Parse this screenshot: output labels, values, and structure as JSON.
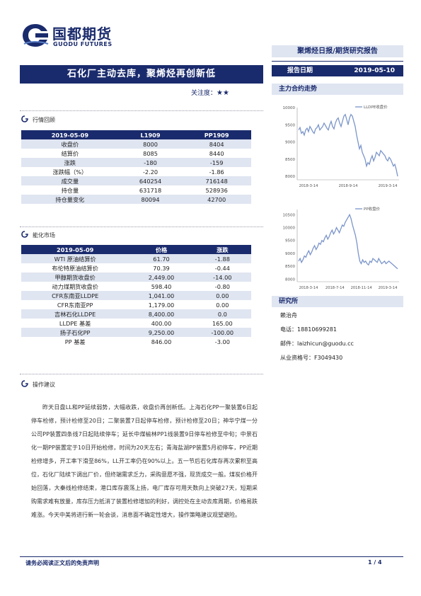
{
  "logo": {
    "name_cn": "国都期货",
    "name_en": "GUODU FUTURES"
  },
  "header": {
    "report_type": "聚烯烃日报/期货研究报告",
    "date_label": "报告日期",
    "date_value": "2019-05-10"
  },
  "title": "石化厂主动去库，聚烯烃再创新低",
  "attention": {
    "label": "关注度：",
    "stars": "★★"
  },
  "sections": {
    "market": "行情回顾",
    "spot": "能化市场",
    "advice": "操作建议"
  },
  "market_table": {
    "headers": [
      "2019-05-09",
      "L1909",
      "PP1909"
    ],
    "rows": [
      [
        "收盘价",
        "8000",
        "8404"
      ],
      [
        "结算价",
        "8085",
        "8440"
      ],
      [
        "涨跌",
        "-180",
        "-159"
      ],
      [
        "涨跌幅（%）",
        "-2.20",
        "-1.86"
      ],
      [
        "成交量",
        "640254",
        "716148"
      ],
      [
        "持仓量",
        "631718",
        "528936"
      ],
      [
        "持仓量变化",
        "80094",
        "42700"
      ]
    ]
  },
  "spot_table": {
    "headers": [
      "2019-05-09",
      "价格",
      "涨跌"
    ],
    "rows": [
      [
        "WTI 原油结算价",
        "61.70",
        "-1.88"
      ],
      [
        "布伦特原油结算价",
        "70.39",
        "-0.44"
      ],
      [
        "甲醇期货收盘价",
        "2,449.00",
        "-14.00"
      ],
      [
        "动力煤期货收盘价",
        "598.40",
        "-0.80"
      ],
      [
        "CFR东南亚LLDPE",
        "1,041.00",
        "0.00"
      ],
      [
        "CFR东南亚PP",
        "1,179.00",
        "0.00"
      ],
      [
        "吉林石化LLDPE",
        "8,400.00",
        "0.0"
      ],
      [
        "LLDPE 基差",
        "400.00",
        "165.00"
      ],
      [
        "扬子石化PP",
        "9,250.00",
        "-100.00"
      ],
      [
        "PP 基差",
        "846.00",
        "-3.00"
      ]
    ]
  },
  "advice_text": "昨天日盘LL和PP延续弱势，大幅收跌，收盘价再创新低。上海石化PP一聚装置6日起停车检修，预计检修至20日；二聚装置7日起停车检修，预计检修至20日；神华宁煤一分公司PP装置四条线7日起陆续停车；延长中煤榆林PP1线装置9日停车检修至中旬；中景石化一期PP装置定于10日开始检修，时间为20天左右；青海盐湖PP装置5月初停车，PP近期检修增多，开工率下滑至86%，LL开工率仍在90%以上。五一节后石化库存再次累积至高位，石化厂陆续下调出厂价，但终端需求乏力，采购意愿不强，现货成交一般。煤炭价格开始回落，大秦线检修结束，港口库存震荡上扬，电厂库存可用天数向上突破27天，短期采购需求难有放量，库存压力抵消了装置检修增加的利好，调控处在主动去库周期，价格易跌难涨。今天中美将进行新一轮会谈，消息面不确定性增大，操作策略建议观望避险。",
  "right": {
    "chart_section": "主力合约走势",
    "research_section": "研究所",
    "analyst": "赖治舟",
    "phone": "电话：18810699281",
    "email": "邮件：laizhicun@guodu.cc",
    "license": "从业资格号：F3049430"
  },
  "chart_data": [
    {
      "type": "line",
      "title": "",
      "series": [
        {
          "name": "LLDPE收盘价",
          "color": "#7b95c9"
        }
      ],
      "x_ticks": [
        "2018-3-14",
        "2018-9-14",
        "2019-3-14"
      ],
      "y_ticks": [
        8000,
        8500,
        9000,
        9500,
        10000
      ],
      "ylim": [
        7900,
        10000
      ],
      "values": [
        9350,
        9420,
        9250,
        9300,
        9200,
        9350,
        9400,
        9300,
        9450,
        9380,
        9300,
        9250,
        9380,
        9420,
        9500,
        9350,
        9400,
        9450,
        9550,
        9480,
        9400,
        9350,
        9500,
        9600,
        9450,
        9380,
        9550,
        9650,
        9700,
        9550,
        9450,
        9600,
        9750,
        9800,
        9650,
        9500,
        9700,
        9800,
        9750,
        9600,
        9450,
        9200,
        9000,
        8800,
        8900,
        8700,
        8600,
        8500,
        8300,
        8400,
        8350,
        8500,
        8600,
        8450,
        8550,
        8700,
        8650,
        8600,
        8750,
        8700,
        8650,
        8600,
        8500,
        8450,
        8550,
        8500,
        8400,
        8300,
        8350,
        8200,
        8000
      ]
    },
    {
      "type": "line",
      "title": "",
      "series": [
        {
          "name": "PP收盘价",
          "color": "#7b95c9"
        }
      ],
      "x_ticks": [
        "2018-3-14",
        "2018-7-14",
        "2018-11-14",
        "2019-3-14"
      ],
      "y_ticks": [
        8000,
        8500,
        9000,
        9500,
        10000,
        10500
      ],
      "ylim": [
        7900,
        10700
      ],
      "values": [
        8700,
        8800,
        8650,
        8750,
        8900,
        8850,
        9000,
        9100,
        8950,
        9050,
        9200,
        9300,
        9150,
        9250,
        9400,
        9350,
        9500,
        9450,
        9600,
        9700,
        9550,
        9650,
        9800,
        9900,
        9750,
        9850,
        10000,
        9900,
        9800,
        9950,
        10100,
        10050,
        10200,
        10300,
        10400,
        10500,
        10350,
        10100,
        9900,
        9700,
        9400,
        9000,
        8700,
        8600,
        8750,
        8650,
        8700,
        8600,
        8550,
        8700,
        8650,
        8800,
        8750,
        8700,
        8650,
        8800,
        8700,
        8600,
        8650,
        8700,
        8600,
        8650,
        8700,
        8650,
        8600,
        8550,
        8500,
        8450,
        8400
      ]
    }
  ],
  "footer": {
    "disclaimer": "请务必阅读正文后的免责声明",
    "page": "1 / 4"
  }
}
